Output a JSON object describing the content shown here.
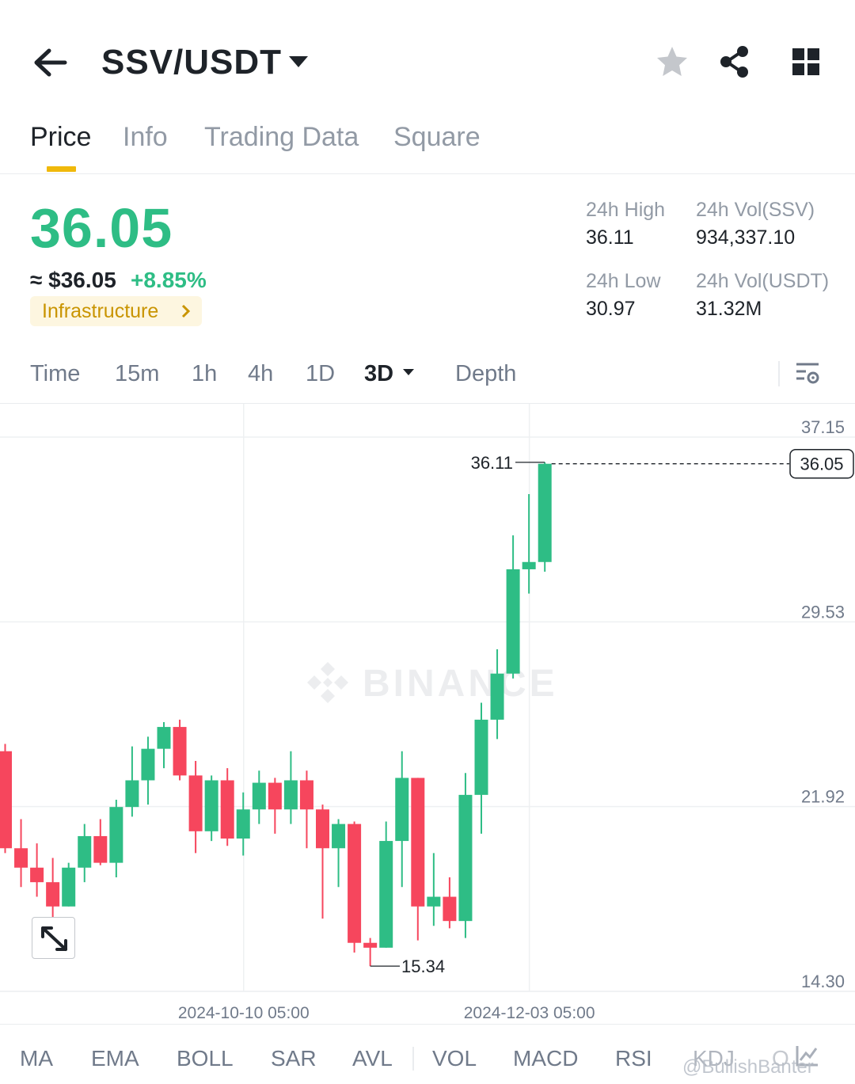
{
  "header": {
    "pair": "SSV/USDT",
    "icons": [
      "back-arrow-icon",
      "caret-down-icon",
      "star-icon",
      "share-icon",
      "grid-icon"
    ]
  },
  "tabs": [
    {
      "label": "Price",
      "active": true
    },
    {
      "label": "Info",
      "active": false
    },
    {
      "label": "Trading Data",
      "active": false
    },
    {
      "label": "Square",
      "active": false
    }
  ],
  "ticker": {
    "price": "36.05",
    "fiat": "≈ $36.05",
    "change": "+8.85%",
    "tag": "Infrastructure",
    "high_label": "24h High",
    "high": "36.11",
    "low_label": "24h Low",
    "low": "30.97",
    "vol_base_label": "24h Vol(SSV)",
    "vol_base": "934,337.10",
    "vol_quote_label": "24h Vol(USDT)",
    "vol_quote": "31.32M",
    "up_color": "#2ebd85",
    "down_color": "#f6465d"
  },
  "intervals": {
    "items": [
      "Time",
      "15m",
      "1h",
      "4h",
      "1D",
      "3D",
      "Depth"
    ],
    "active": "3D"
  },
  "chart_data": {
    "type": "candlestick",
    "interval": "3D",
    "y_ticks": [
      "37.15",
      "29.53",
      "21.92",
      "14.30"
    ],
    "x_ticks": [
      "2024-10-10 05:00",
      "2024-12-03 05:00"
    ],
    "ylim": [
      14.3,
      37.15
    ],
    "current_price_label": "36.05",
    "max_label": "36.11",
    "min_label": "15.34",
    "watermark": "BINANCE",
    "candles": [
      {
        "o": 24.2,
        "h": 24.5,
        "l": 20.0,
        "c": 20.2
      },
      {
        "o": 20.2,
        "h": 21.4,
        "l": 18.6,
        "c": 19.4
      },
      {
        "o": 19.4,
        "h": 20.4,
        "l": 18.2,
        "c": 18.8
      },
      {
        "o": 18.8,
        "h": 19.8,
        "l": 17.2,
        "c": 17.8
      },
      {
        "o": 17.8,
        "h": 19.6,
        "l": 17.8,
        "c": 19.4
      },
      {
        "o": 19.4,
        "h": 21.2,
        "l": 18.8,
        "c": 20.7
      },
      {
        "o": 20.7,
        "h": 21.4,
        "l": 19.5,
        "c": 19.6
      },
      {
        "o": 19.6,
        "h": 22.2,
        "l": 19.0,
        "c": 21.9
      },
      {
        "o": 21.9,
        "h": 24.4,
        "l": 21.5,
        "c": 23.0
      },
      {
        "o": 23.0,
        "h": 24.8,
        "l": 22.0,
        "c": 24.3
      },
      {
        "o": 24.3,
        "h": 25.4,
        "l": 23.5,
        "c": 25.2
      },
      {
        "o": 25.2,
        "h": 25.5,
        "l": 23.0,
        "c": 23.2
      },
      {
        "o": 23.2,
        "h": 23.8,
        "l": 20.0,
        "c": 20.9
      },
      {
        "o": 20.9,
        "h": 23.2,
        "l": 20.5,
        "c": 23.0
      },
      {
        "o": 23.0,
        "h": 23.5,
        "l": 20.3,
        "c": 20.6
      },
      {
        "o": 20.6,
        "h": 22.5,
        "l": 19.9,
        "c": 21.8
      },
      {
        "o": 21.8,
        "h": 23.4,
        "l": 21.2,
        "c": 22.9
      },
      {
        "o": 22.9,
        "h": 23.1,
        "l": 20.8,
        "c": 21.8
      },
      {
        "o": 21.8,
        "h": 24.2,
        "l": 21.2,
        "c": 23.0
      },
      {
        "o": 23.0,
        "h": 23.4,
        "l": 20.2,
        "c": 21.8
      },
      {
        "o": 21.8,
        "h": 22.0,
        "l": 17.3,
        "c": 20.2
      },
      {
        "o": 20.2,
        "h": 21.4,
        "l": 18.6,
        "c": 21.2
      },
      {
        "o": 21.2,
        "h": 21.3,
        "l": 15.9,
        "c": 16.3
      },
      {
        "o": 16.3,
        "h": 16.5,
        "l": 15.34,
        "c": 16.1
      },
      {
        "o": 16.1,
        "h": 21.3,
        "l": 16.1,
        "c": 20.5
      },
      {
        "o": 20.5,
        "h": 24.2,
        "l": 18.6,
        "c": 23.1
      },
      {
        "o": 23.1,
        "h": 23.1,
        "l": 16.4,
        "c": 17.8
      },
      {
        "o": 17.8,
        "h": 20.0,
        "l": 17.0,
        "c": 18.2
      },
      {
        "o": 18.2,
        "h": 19.0,
        "l": 16.9,
        "c": 17.2
      },
      {
        "o": 17.2,
        "h": 23.3,
        "l": 16.5,
        "c": 22.4
      },
      {
        "o": 22.4,
        "h": 26.2,
        "l": 20.8,
        "c": 25.5
      },
      {
        "o": 25.5,
        "h": 28.4,
        "l": 24.7,
        "c": 27.4
      },
      {
        "o": 27.4,
        "h": 33.1,
        "l": 27.2,
        "c": 31.7
      },
      {
        "o": 31.7,
        "h": 34.8,
        "l": 30.7,
        "c": 32.0
      },
      {
        "o": 32.0,
        "h": 36.11,
        "l": 31.6,
        "c": 36.05
      }
    ]
  },
  "indicators": {
    "items": [
      "MA",
      "EMA",
      "BOLL",
      "SAR",
      "AVL",
      "VOL",
      "MACD",
      "RSI",
      "KDJ",
      "O"
    ]
  },
  "credit": "@BullishBanter"
}
